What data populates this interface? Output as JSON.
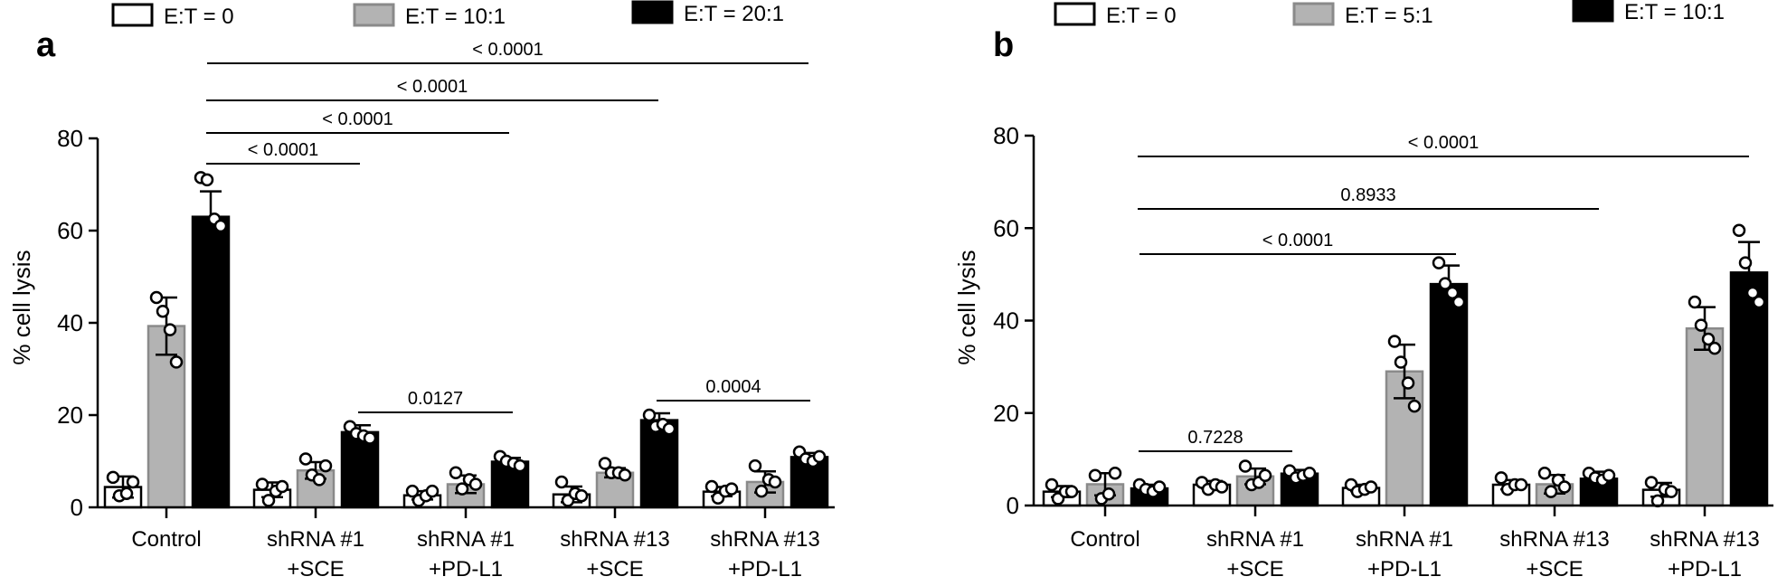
{
  "chart_data": [
    {
      "panel_label": "a",
      "type": "bar",
      "ylabel": "% cell lysis",
      "ylim": [
        0,
        80
      ],
      "yticks": [
        0,
        20,
        40,
        60,
        80
      ],
      "categories": [
        [
          "Control"
        ],
        [
          "shRNA #1",
          "+SCE"
        ],
        [
          "shRNA #1",
          "+PD-L1"
        ],
        [
          "shRNA #13",
          "+SCE"
        ],
        [
          "shRNA #13",
          "+PD-L1"
        ]
      ],
      "legend_position": "top",
      "colors": {
        "E:T = 0": "#ffffff",
        "E:T = 10:1": "#b3b3b3",
        "E:T = 20:1": "#000000"
      },
      "series": [
        {
          "name": "E:T = 0",
          "values": [
            4.4,
            3.8,
            2.6,
            2.8,
            3.4
          ],
          "sd": [
            2.3,
            1.6,
            0.9,
            1.7,
            1.0
          ],
          "points": [
            [
              6.5,
              2.5,
              3,
              5.5
            ],
            [
              5,
              1.5,
              3.5,
              4.5
            ],
            [
              3.5,
              1.5,
              2.5,
              3.5
            ],
            [
              5.5,
              1.5,
              3,
              2.5
            ],
            [
              4.5,
              2,
              3.5,
              4
            ]
          ]
        },
        {
          "name": "E:T = 10:1",
          "values": [
            39.3,
            8,
            5,
            7.5,
            5.5
          ],
          "sd": [
            6.2,
            1.8,
            1.9,
            1.0,
            2.3
          ],
          "points": [
            [
              45.5,
              42.5,
              38.5,
              31.5
            ],
            [
              10.5,
              7,
              6,
              9
            ],
            [
              7.5,
              4,
              6,
              5
            ],
            [
              9.5,
              7.5,
              7.5,
              7
            ],
            [
              9,
              3.5,
              6,
              5.5
            ]
          ]
        },
        {
          "name": "E:T = 20:1",
          "values": [
            63,
            16.3,
            9.9,
            18.9,
            10.9
          ],
          "sd": [
            5.5,
            1.5,
            0.8,
            1.5,
            0.9
          ],
          "points": [
            [
              71.5,
              71,
              62.5,
              61
            ],
            [
              17.5,
              16,
              15.5,
              15
            ],
            [
              11,
              10,
              9.5,
              9
            ],
            [
              20,
              17.5,
              18,
              17
            ],
            [
              12,
              10.5,
              10,
              11
            ]
          ]
        }
      ],
      "comparisons": [
        {
          "from": "Control E:T = 20:1",
          "to": "shRNA #1 +SCE E:T = 20:1",
          "p": "< 0.0001"
        },
        {
          "from": "Control E:T = 20:1",
          "to": "shRNA #1 +PD-L1 E:T = 20:1",
          "p": "< 0.0001"
        },
        {
          "from": "Control E:T = 20:1",
          "to": "shRNA #13 +SCE E:T = 20:1",
          "p": "< 0.0001"
        },
        {
          "from": "Control E:T = 20:1",
          "to": "shRNA #13 +PD-L1 E:T = 20:1",
          "p": "< 0.0001"
        },
        {
          "from": "shRNA #1 +SCE E:T = 20:1",
          "to": "shRNA #1 +PD-L1 E:T = 20:1",
          "p": "0.0127"
        },
        {
          "from": "shRNA #13 +SCE E:T = 20:1",
          "to": "shRNA #13 +PD-L1 E:T = 20:1",
          "p": "0.0004"
        }
      ]
    },
    {
      "panel_label": "b",
      "type": "bar",
      "ylabel": "% cell lysis",
      "ylim": [
        0,
        80
      ],
      "yticks": [
        0,
        20,
        40,
        60,
        80
      ],
      "categories": [
        [
          "Control"
        ],
        [
          "shRNA #1",
          "+SCE"
        ],
        [
          "shRNA #1",
          "+PD-L1"
        ],
        [
          "shRNA #13",
          "+SCE"
        ],
        [
          "shRNA #13",
          "+PD-L1"
        ]
      ],
      "legend_position": "top",
      "colors": {
        "E:T = 0": "#ffffff",
        "E:T = 5:1": "#b3b3b3",
        "E:T = 10:1": "#000000"
      },
      "series": [
        {
          "name": "E:T = 0",
          "values": [
            3,
            4.5,
            3.8,
            4.5,
            3.4
          ],
          "sd": [
            1.2,
            0.8,
            0.7,
            1.0,
            1.5
          ],
          "points": [
            [
              4.5,
              1.5,
              3,
              3
            ],
            [
              5,
              3.5,
              4.5,
              4
            ],
            [
              4.5,
              3,
              3.5,
              4
            ],
            [
              6,
              3.5,
              4.5,
              4.5
            ],
            [
              5,
              1,
              3.5,
              3
            ]
          ]
        },
        {
          "name": "E:T = 5:1",
          "values": [
            4.6,
            6.3,
            29,
            4.6,
            38.3
          ],
          "sd": [
            2.4,
            1.7,
            5.8,
            2.0,
            4.6
          ],
          "points": [
            [
              6.5,
              1.5,
              2.5,
              7
            ],
            [
              8.5,
              4.5,
              5,
              6.5
            ],
            [
              35.5,
              31,
              26.5,
              21.5
            ],
            [
              7,
              3,
              5.5,
              4
            ],
            [
              44,
              39,
              36,
              34
            ]
          ]
        },
        {
          "name": "E:T = 10:1",
          "values": [
            3.7,
            6.9,
            47.9,
            5.8,
            50.4
          ],
          "sd": [
            0.8,
            0.8,
            4.0,
            1.5,
            6.6
          ],
          "points": [
            [
              4.5,
              3.5,
              3,
              4
            ],
            [
              7.5,
              6,
              6.5,
              7
            ],
            [
              52.5,
              48,
              46,
              44
            ],
            [
              7,
              6,
              5.5,
              6.5
            ],
            [
              59.5,
              52.5,
              46,
              44
            ]
          ]
        }
      ],
      "comparisons": [
        {
          "from": "Control E:T = 10:1",
          "to": "shRNA #1 +SCE E:T = 0",
          "p": "0.7228"
        },
        {
          "from": "Control E:T = 10:1",
          "to": "shRNA #1 +PD-L1 E:T = 10:1",
          "p": "< 0.0001"
        },
        {
          "from": "Control E:T = 10:1",
          "to": "shRNA #13 +SCE E:T = 10:1",
          "p": "0.8933"
        },
        {
          "from": "Control E:T = 10:1",
          "to": "shRNA #13 +PD-L1 E:T = 10:1",
          "p": "< 0.0001"
        }
      ]
    }
  ]
}
